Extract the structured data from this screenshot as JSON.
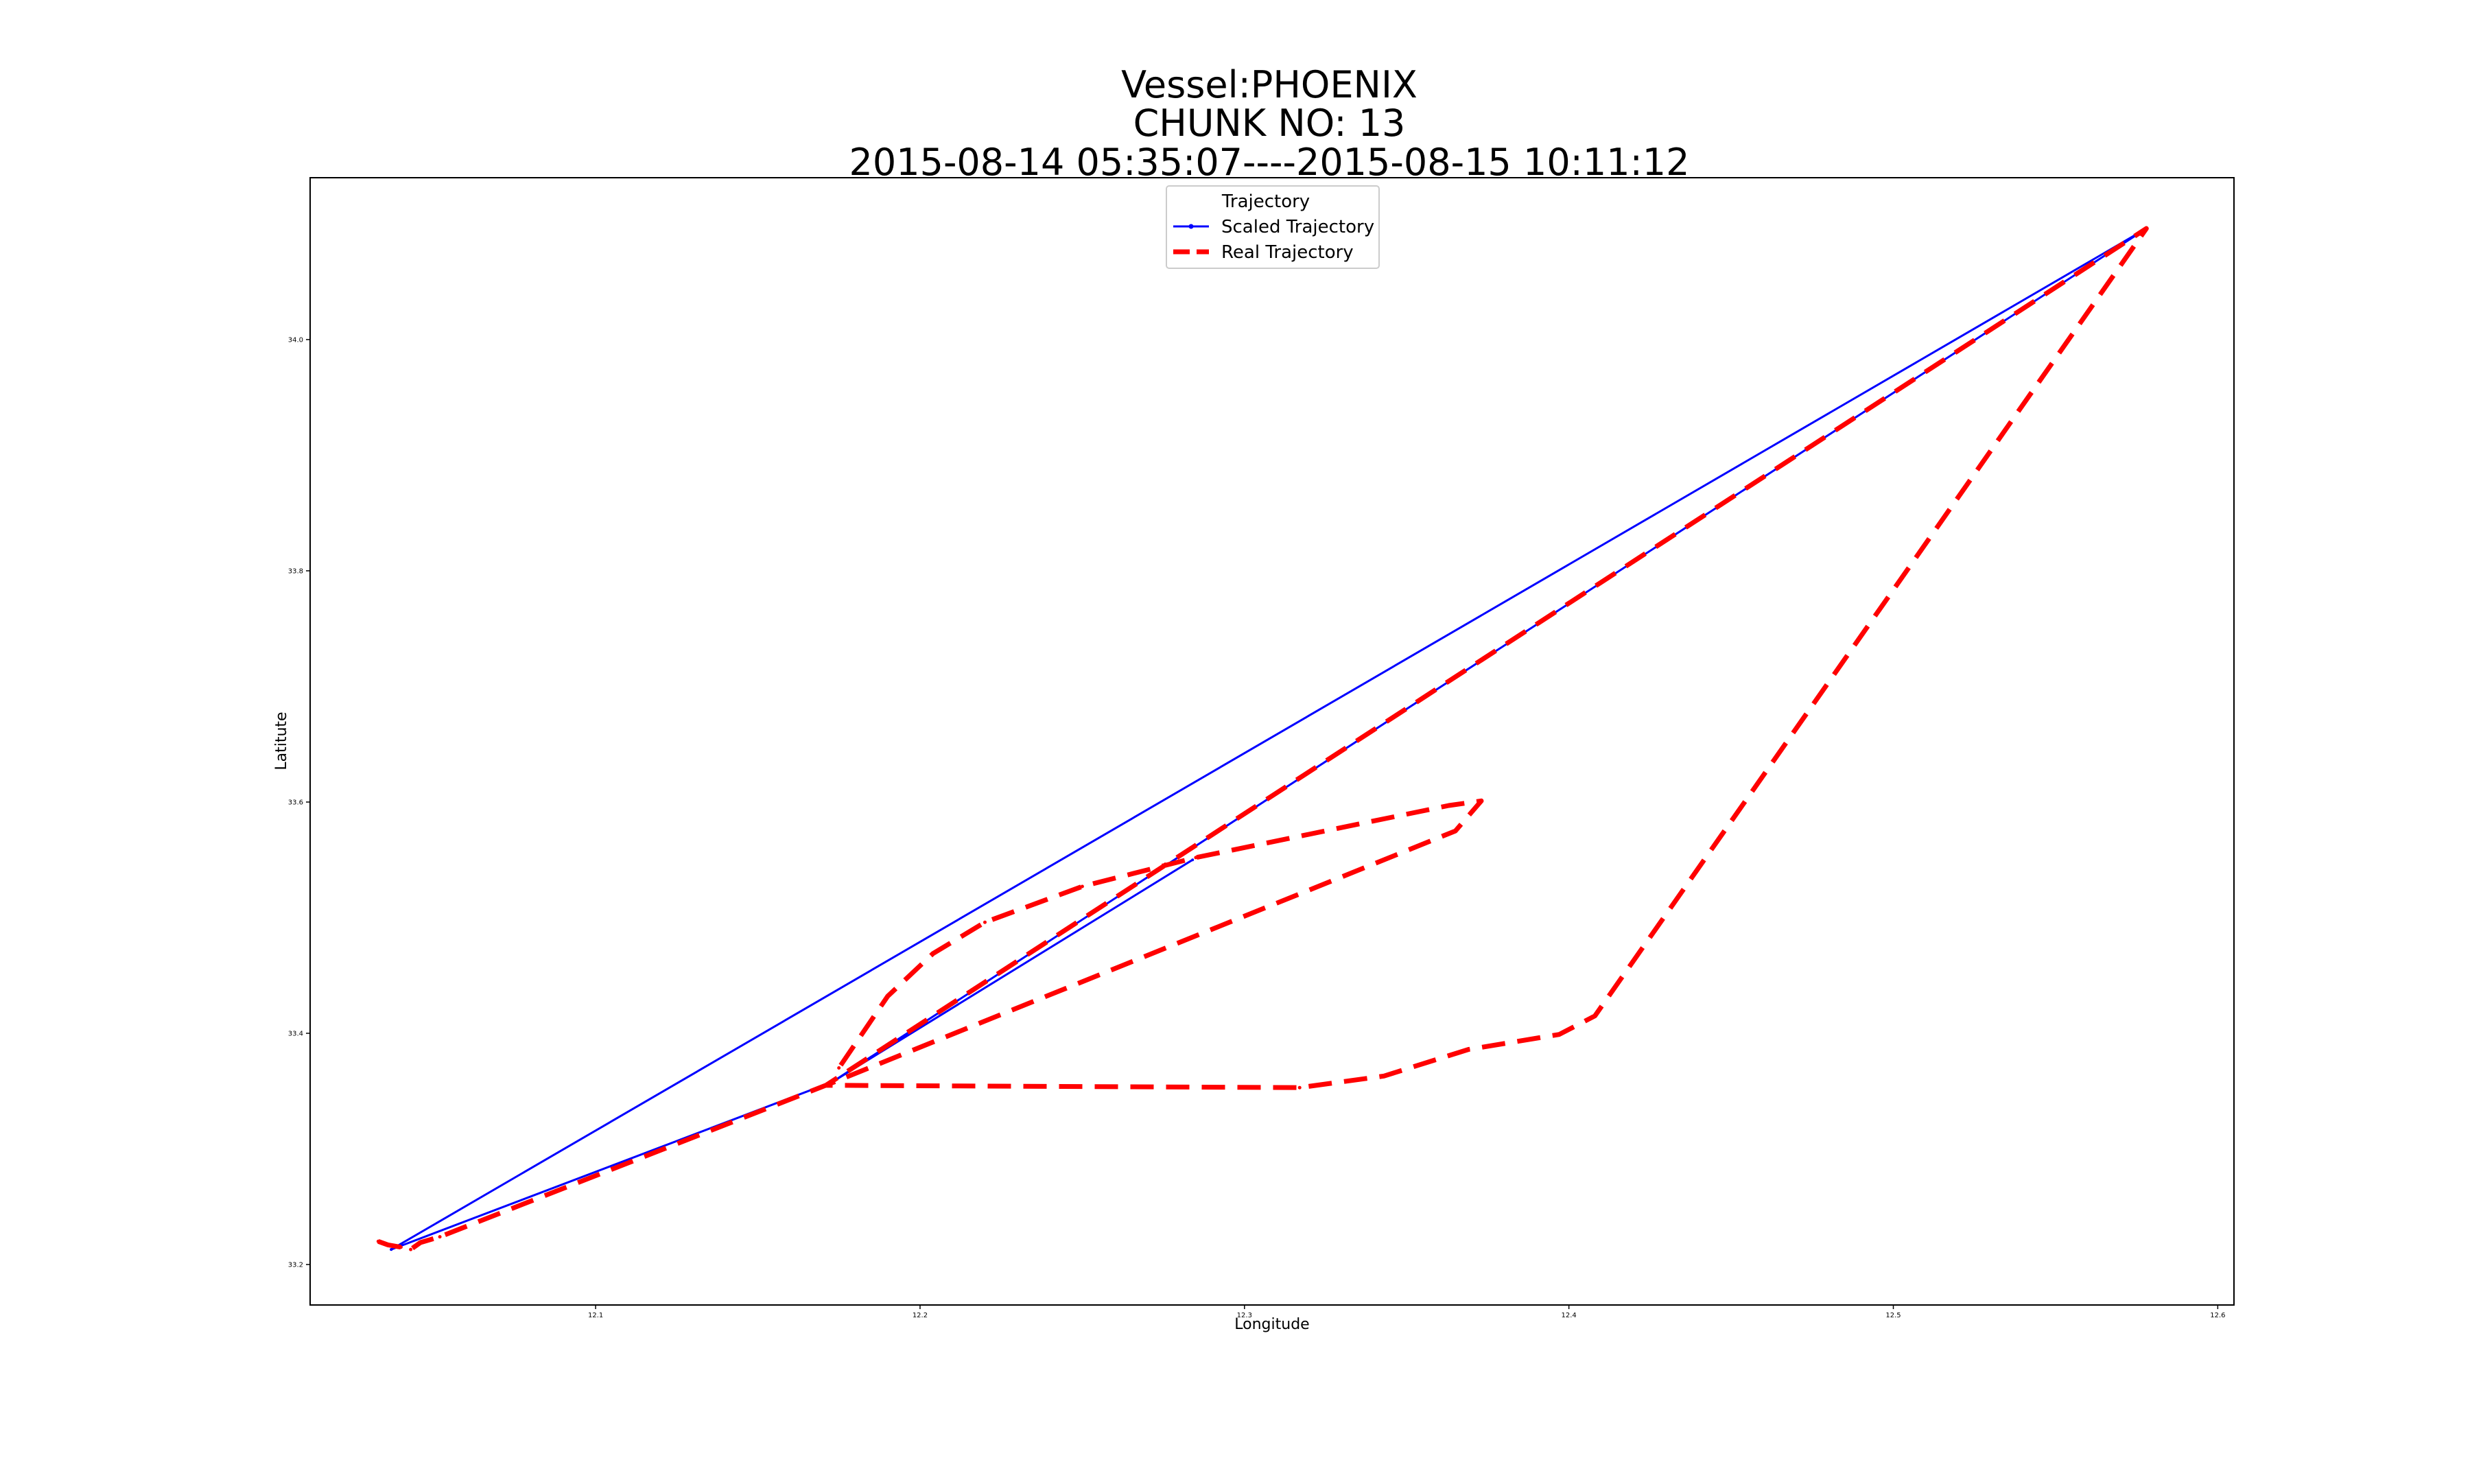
{
  "chart_data": {
    "type": "line",
    "title_lines": [
      "Vessel:PHOENIX",
      "CHUNK NO: 13",
      "2015-08-14 05:35:07----2015-08-15 10:11:12"
    ],
    "xlabel": "Longitude",
    "ylabel": "Latitute",
    "xlim": [
      12.012,
      12.605
    ],
    "ylim": [
      33.165,
      34.14
    ],
    "xticks": [
      12.1,
      12.2,
      12.3,
      12.4,
      12.5,
      12.6
    ],
    "xtick_labels": [
      "12.1",
      "12.2",
      "12.3",
      "12.4",
      "12.5",
      "12.6"
    ],
    "yticks": [
      33.2,
      33.4,
      33.6,
      33.8,
      34.0
    ],
    "ytick_labels": [
      "33.2",
      "33.4",
      "33.6",
      "33.8",
      "34.0"
    ],
    "legend": {
      "title": "Trajectory",
      "placement": "upper center"
    },
    "grid": false,
    "series": [
      {
        "name": "Scaled Trajectory",
        "color": "#0000ff",
        "style": "solid",
        "marker": "dot",
        "points": [
          [
            12.037,
            33.213
          ],
          [
            12.173,
            33.358
          ],
          [
            12.284,
            33.55
          ],
          [
            12.173,
            33.358
          ],
          [
            12.578,
            34.096
          ],
          [
            12.037,
            33.213
          ]
        ]
      },
      {
        "name": "Real Trajectory",
        "color": "#ff0000",
        "style": "dashed",
        "marker": "dot",
        "points": [
          [
            12.033,
            33.22
          ],
          [
            12.036,
            33.217
          ],
          [
            12.04,
            33.215
          ],
          [
            12.043,
            33.213
          ],
          [
            12.046,
            33.219
          ],
          [
            12.052,
            33.224
          ],
          [
            12.171,
            33.355
          ],
          [
            12.317,
            33.353
          ],
          [
            12.343,
            33.363
          ],
          [
            12.369,
            33.386
          ],
          [
            12.397,
            33.399
          ],
          [
            12.408,
            33.415
          ],
          [
            12.578,
            34.096
          ],
          [
            12.171,
            33.355
          ],
          [
            12.365,
            33.575
          ],
          [
            12.373,
            33.601
          ],
          [
            12.363,
            33.597
          ],
          [
            12.285,
            33.552
          ],
          [
            12.25,
            33.527
          ],
          [
            12.22,
            33.496
          ],
          [
            12.204,
            33.469
          ],
          [
            12.19,
            33.432
          ],
          [
            12.175,
            33.37
          ]
        ]
      }
    ]
  }
}
